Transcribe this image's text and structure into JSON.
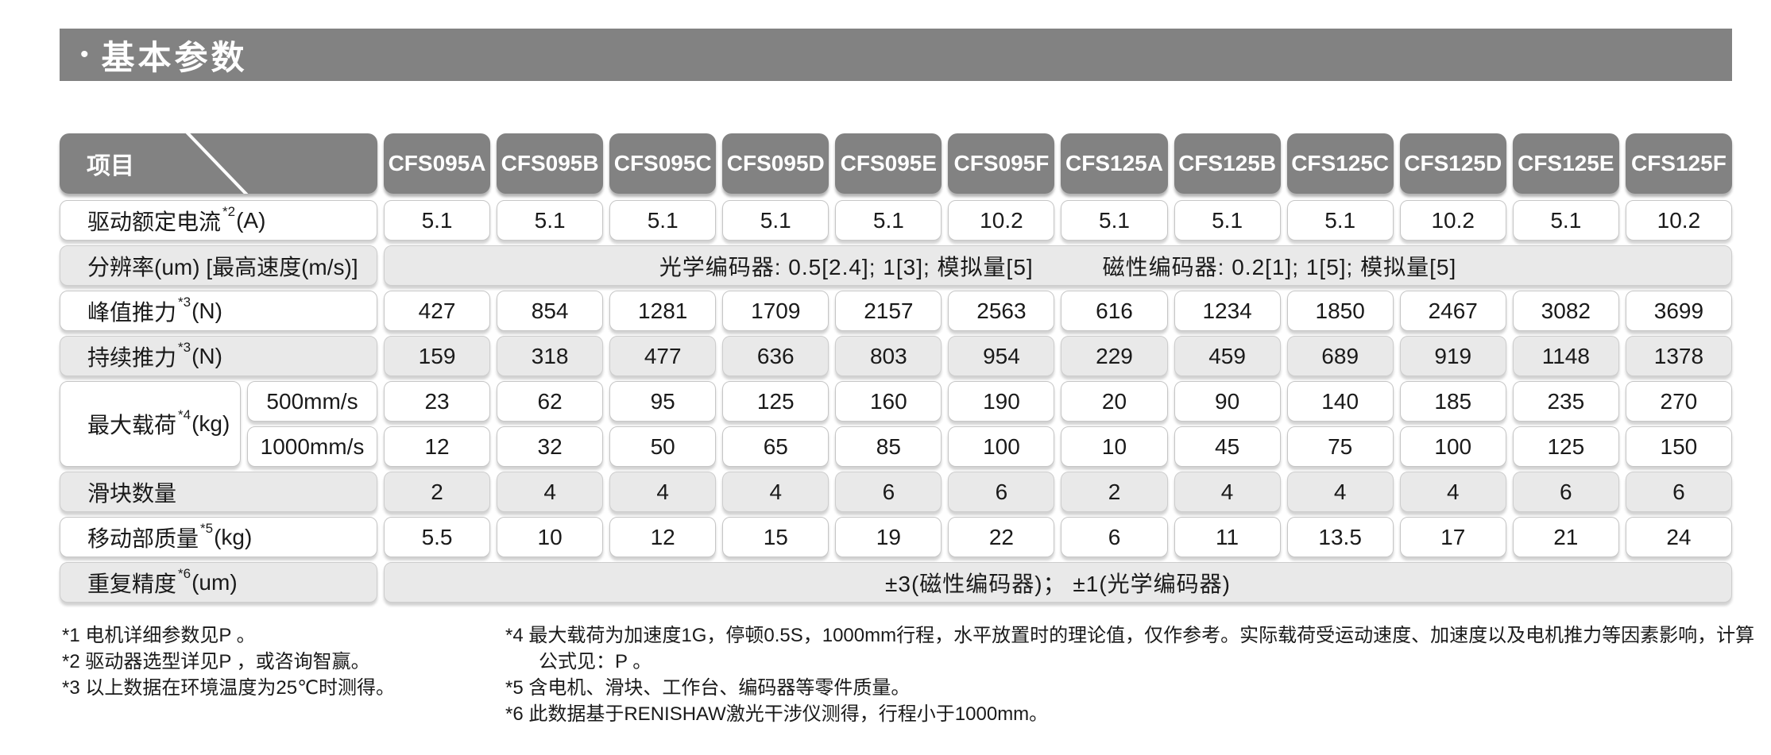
{
  "page": {
    "bullet": "•",
    "title": "基本参数"
  },
  "table": {
    "corner_label": "项目",
    "columns": [
      "CFS095A",
      "CFS095B",
      "CFS095C",
      "CFS095D",
      "CFS095E",
      "CFS095F",
      "CFS125A",
      "CFS125B",
      "CFS125C",
      "CFS125D",
      "CFS125E",
      "CFS125F"
    ],
    "rows": [
      {
        "type": "values",
        "shade": "white",
        "label": {
          "text": "驱动额定电流",
          "sup": "*2",
          "unit": "(A)"
        },
        "values": [
          "5.1",
          "5.1",
          "5.1",
          "5.1",
          "5.1",
          "10.2",
          "5.1",
          "5.1",
          "5.1",
          "10.2",
          "5.1",
          "10.2"
        ]
      },
      {
        "type": "merged",
        "shade": "gray",
        "label": {
          "text": "分辨率(um)  [最高速度(m/s)]",
          "sup": "",
          "unit": ""
        },
        "merged_value": "光学编码器: 0.5[2.4];  1[3];  模拟量[5]　　　磁性编码器: 0.2[1];  1[5];  模拟量[5]"
      },
      {
        "type": "values",
        "shade": "white",
        "label": {
          "text": "峰值推力",
          "sup": "*3",
          "unit": "(N)"
        },
        "values": [
          "427",
          "854",
          "1281",
          "1709",
          "2157",
          "2563",
          "616",
          "1234",
          "1850",
          "2467",
          "3082",
          "3699"
        ]
      },
      {
        "type": "values",
        "shade": "gray",
        "label": {
          "text": "持续推力",
          "sup": "*3",
          "unit": "(N)"
        },
        "values": [
          "159",
          "318",
          "477",
          "636",
          "803",
          "954",
          "229",
          "459",
          "689",
          "919",
          "1148",
          "1378"
        ]
      },
      {
        "type": "dual",
        "shade": "white",
        "label": {
          "text": "最大载荷",
          "sup": "*4",
          "unit": "(kg)"
        },
        "sub_rows": [
          {
            "sub_label": "500mm/s",
            "values": [
              "23",
              "62",
              "95",
              "125",
              "160",
              "190",
              "20",
              "90",
              "140",
              "185",
              "235",
              "270"
            ]
          },
          {
            "sub_label": "1000mm/s",
            "values": [
              "12",
              "32",
              "50",
              "65",
              "85",
              "100",
              "10",
              "45",
              "75",
              "100",
              "125",
              "150"
            ]
          }
        ]
      },
      {
        "type": "values",
        "shade": "gray",
        "label": {
          "text": "滑块数量",
          "sup": "",
          "unit": ""
        },
        "values": [
          "2",
          "4",
          "4",
          "4",
          "6",
          "6",
          "2",
          "4",
          "4",
          "4",
          "6",
          "6"
        ]
      },
      {
        "type": "values",
        "shade": "white",
        "label": {
          "text": "移动部质量",
          "sup": "*5",
          "unit": "(kg)"
        },
        "values": [
          "5.5",
          "10",
          "12",
          "15",
          "19",
          "22",
          "6",
          "11",
          "13.5",
          "17",
          "21",
          "24"
        ]
      },
      {
        "type": "merged",
        "shade": "gray",
        "label": {
          "text": "重复精度",
          "sup": "*6",
          "unit": "(um)"
        },
        "merged_value": "±3(磁性编码器)；  ±1(光学编码器)"
      }
    ]
  },
  "footnotes": {
    "left": [
      "*1 电机详细参数见P 。",
      "*2 驱动器选型详见P ，或咨询智赢。",
      "*3 以上数据在环境温度为25℃时测得。"
    ],
    "right": [
      {
        "text": "*4 最大载荷为加速度1G，停顿0.5S，1000mm行程，水平放置时的理论值，仅作参考。实际载荷受运动速度、加速度以及电机推力等因素影响，计算",
        "indent": false
      },
      {
        "text": "公式见：P 。",
        "indent": true
      },
      {
        "text": "*5 含电机、滑块、工作台、编码器等零件质量。",
        "indent": false
      },
      {
        "text": "*6 此数据基于RENISHAW激光干涉仪测得，行程小于1000mm。",
        "indent": false
      }
    ]
  },
  "colors": {
    "header_gray": "#828282",
    "row_light_gray": "#e9e9e9",
    "row_white": "#ffffff",
    "text": "#1a1a1a"
  }
}
